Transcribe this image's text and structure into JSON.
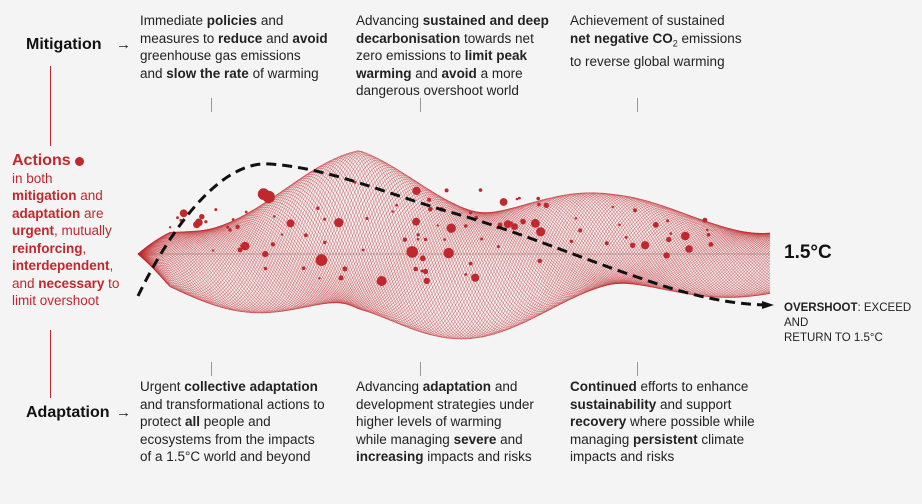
{
  "rows": {
    "mitigation": "Mitigation",
    "adaptation": "Adaptation",
    "arrow": "→"
  },
  "actions": {
    "title": "Actions",
    "l1": "in both",
    "l2a": "mitigation",
    "l2b": " and",
    "l3a": "adaptation",
    "l3b": " are",
    "l4a": "urgent",
    "l4b": ", mutually",
    "l5a": "reinforcing",
    "l6a": "interdependent",
    "l7a": "and ",
    "l7b": "necessary",
    "l7c": " to",
    "l8": "limit overshoot"
  },
  "mitigation_texts": {
    "col1": {
      "a": "Immediate ",
      "b": "policies",
      "c": " and",
      "d": "measures to ",
      "e": "reduce",
      "f": " and ",
      "g": "avoid",
      "h": "greenhouse gas emissions",
      "i": "and ",
      "j": "slow the rate",
      "k": " of warming"
    },
    "col2": {
      "a": "Advancing ",
      "b": "sustained and deep",
      "c": "decarbonisation",
      "d": " towards net",
      "e": "zero emissions to ",
      "f": "limit peak",
      "g": "warming",
      "h": " and ",
      "i": "avoid",
      "j": " a more",
      "k": "dangerous overshoot world"
    },
    "col3": {
      "a": "Achievement of sustained",
      "b": "net negative CO",
      "sub": "2",
      "c": " emissions",
      "d": "to reverse global warming"
    }
  },
  "adaptation_texts": {
    "col1": {
      "a": "Urgent ",
      "b": "collective adaptation",
      "c": "and transformational actions to",
      "d": "protect ",
      "e": "all",
      "f": " people and",
      "g": "ecosystems from the impacts",
      "h": "of a 1.5°C world and beyond"
    },
    "col2": {
      "a": "Advancing ",
      "b": "adaptation",
      "c": " and",
      "d": "development strategies under",
      "e": "higher levels of warming",
      "f": "while managing ",
      "g": "severe",
      "h": " and",
      "i": "increasing",
      "j": " impacts and risks"
    },
    "col3": {
      "a": "Continued",
      "b": " efforts to enhance",
      "c": "sustainability",
      "d": " and support",
      "e": "recovery",
      "f": " where possible while",
      "g": "managing ",
      "h": "persistent",
      "i": " climate",
      "j": "impacts and risks"
    }
  },
  "threshold": {
    "label": "1.5°C",
    "overshoot_bold": "OVERSHOOT",
    "overshoot_rest": ": EXCEED AND",
    "overshoot_line2": "RETURN TO 1.5°C"
  },
  "colors": {
    "accent": "#c0282d",
    "background": "#f4f4f4"
  }
}
